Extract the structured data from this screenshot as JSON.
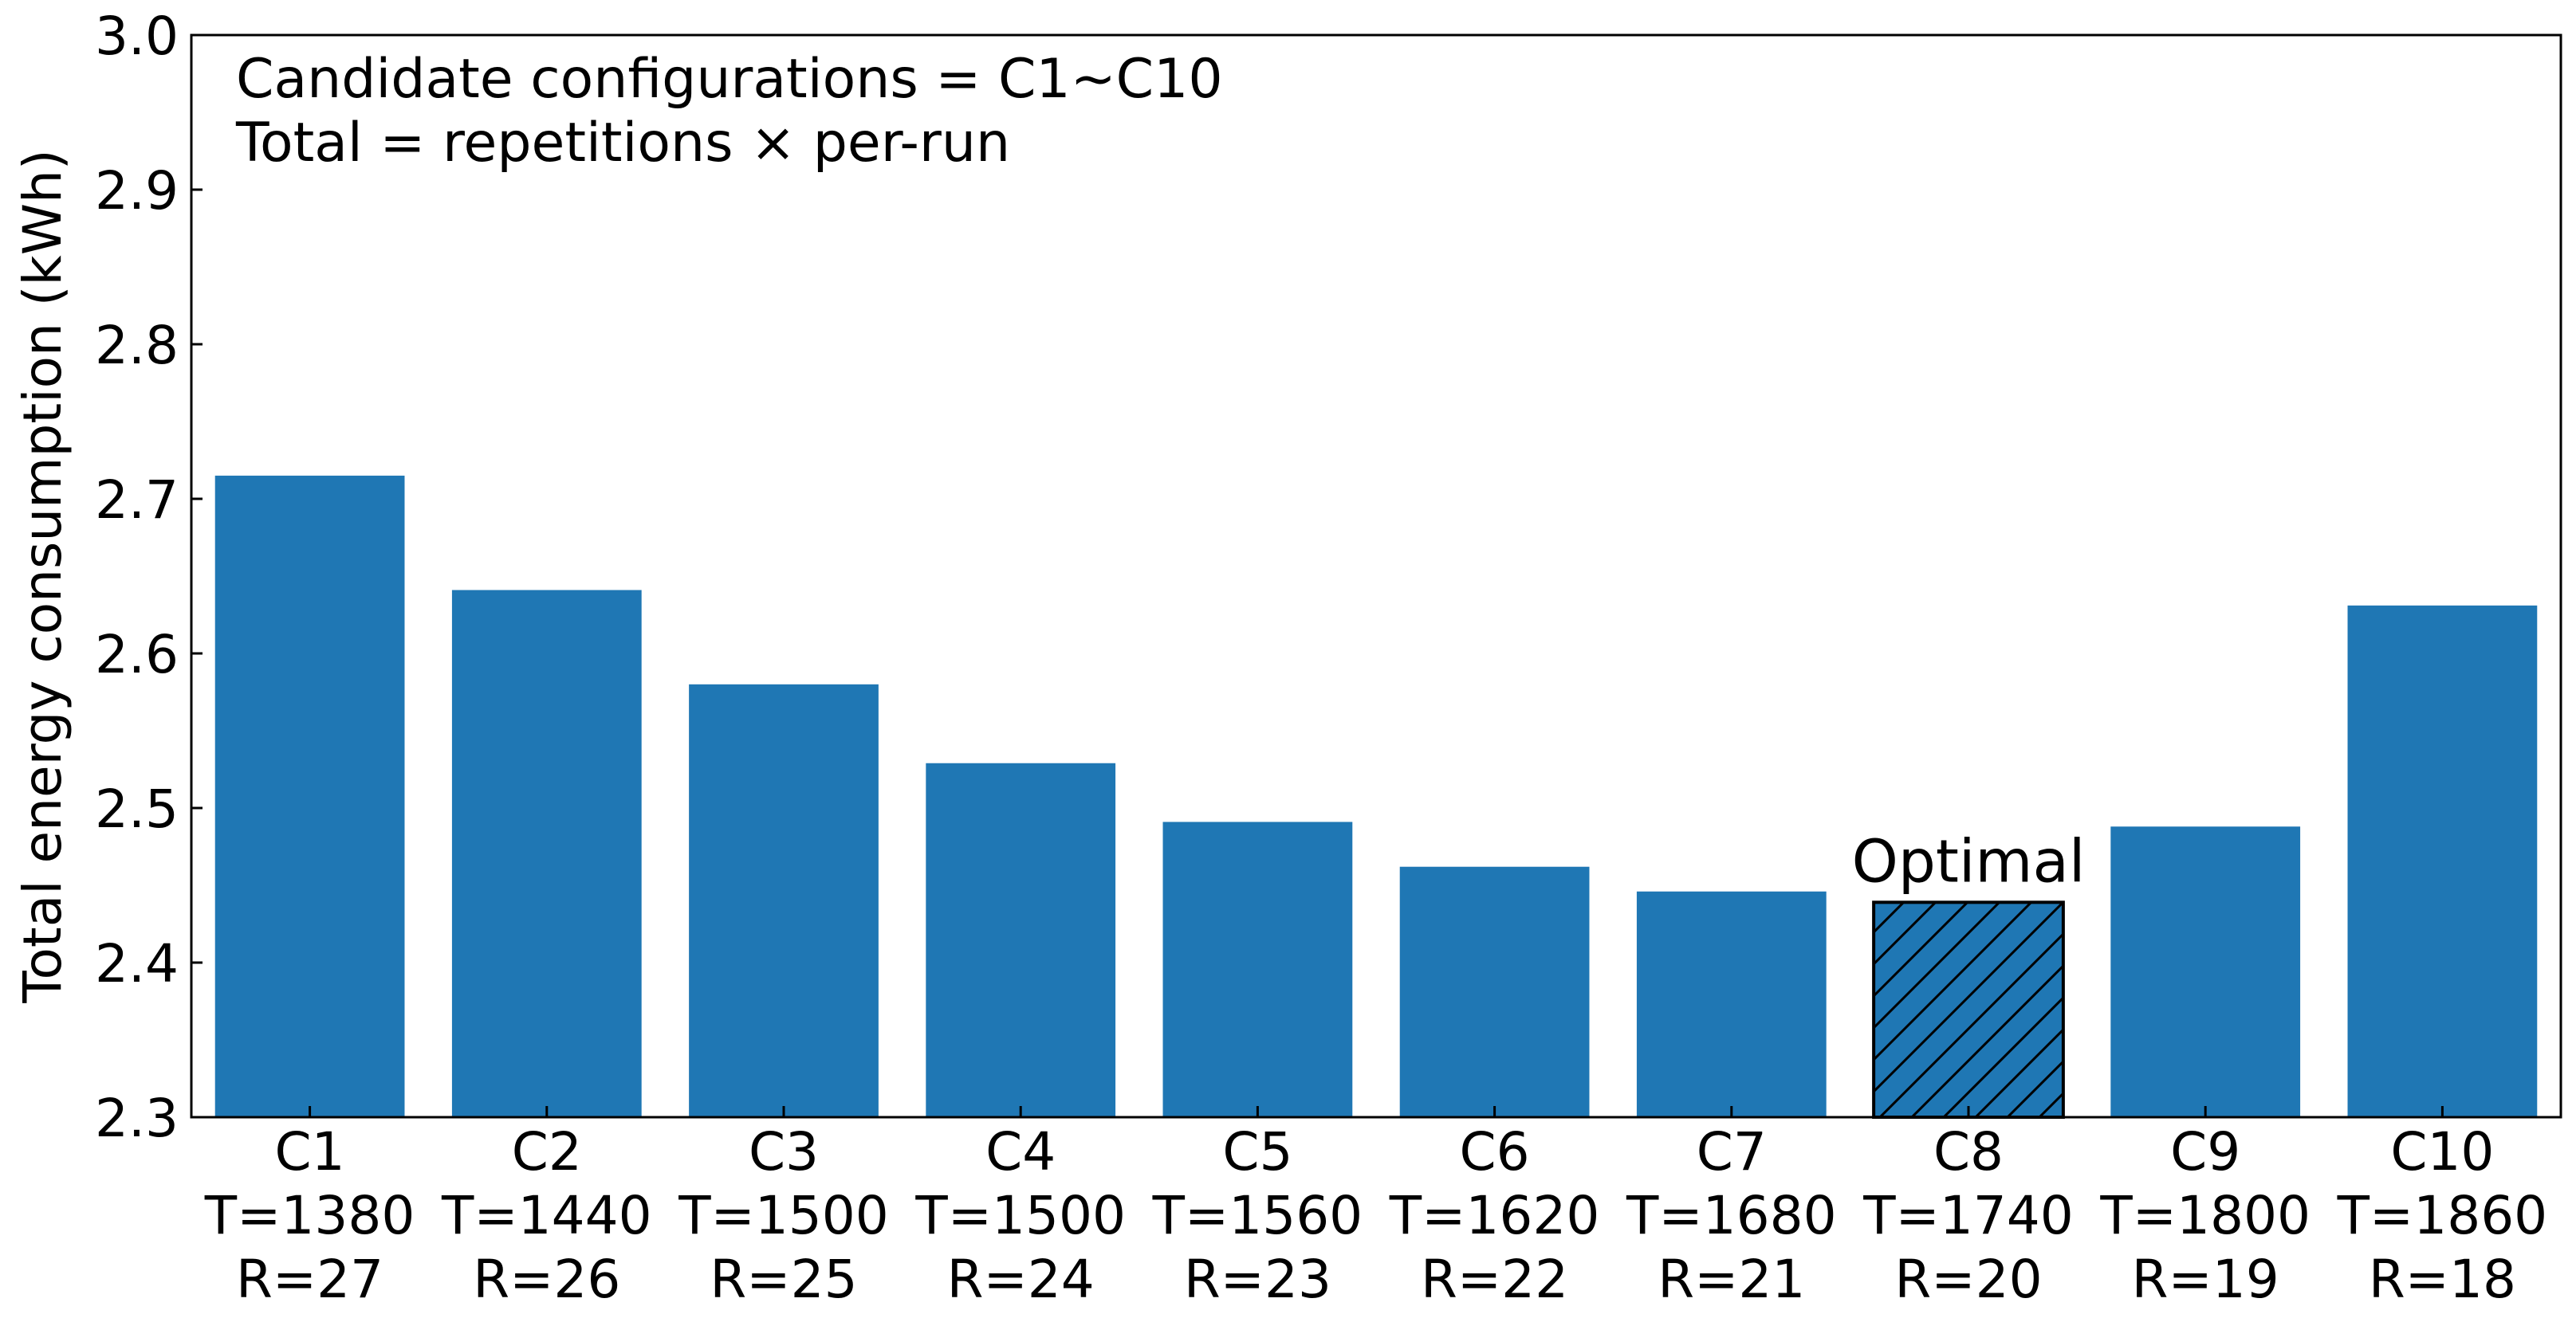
{
  "chart_data": {
    "type": "bar",
    "categories": [
      "C1",
      "C2",
      "C3",
      "C4",
      "C5",
      "C6",
      "C7",
      "C8",
      "C9",
      "C10"
    ],
    "category_sublabels": [
      [
        "T=1380",
        "R=27"
      ],
      [
        "T=1440",
        "R=26"
      ],
      [
        "T=1500",
        "R=25"
      ],
      [
        "T=1500",
        "R=24"
      ],
      [
        "T=1560",
        "R=23"
      ],
      [
        "T=1620",
        "R=22"
      ],
      [
        "T=1680",
        "R=21"
      ],
      [
        "T=1740",
        "R=20"
      ],
      [
        "T=1800",
        "R=19"
      ],
      [
        "T=1860",
        "R=18"
      ]
    ],
    "values": [
      2.715,
      2.641,
      2.58,
      2.529,
      2.491,
      2.462,
      2.446,
      2.439,
      2.488,
      2.631
    ],
    "highlight_index": 7,
    "highlight_label": "Optimal",
    "annotations": [
      "Candidate configurations = C1~C10",
      "Total = repetitions × per-run"
    ],
    "xlabel": "",
    "ylabel": "Total energy consumption (kWh)",
    "ylim": [
      2.3,
      3.0
    ],
    "yticks": [
      "2.3",
      "2.4",
      "2.5",
      "2.6",
      "2.7",
      "2.8",
      "2.9",
      "3.0"
    ],
    "grid": false,
    "bar_color": "#1f77b4",
    "highlight_style": "hatched"
  }
}
